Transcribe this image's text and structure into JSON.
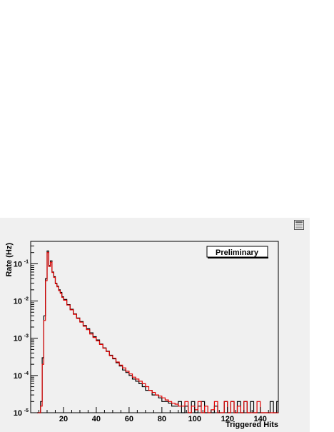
{
  "window": {
    "menu_icon": "options-menu-icon"
  },
  "chart_data": {
    "type": "line",
    "title": "",
    "xlabel": "Triggered Hits",
    "ylabel": "Rate (Hz)",
    "annotation": "Preliminary",
    "x_ticks": [
      20,
      40,
      60,
      80,
      100,
      120,
      140
    ],
    "x_tick_labels": [
      "20",
      "40",
      "60",
      "80",
      "100",
      "120",
      "140"
    ],
    "y_scale": "log",
    "y_ticks": [
      1e-05,
      0.0001,
      0.001,
      0.01,
      0.1
    ],
    "y_tick_labels": [
      {
        "base": "10",
        "exp": "-5"
      },
      {
        "base": "10",
        "exp": "-4"
      },
      {
        "base": "10",
        "exp": "-3"
      },
      {
        "base": "10",
        "exp": "-2"
      },
      {
        "base": "10",
        "exp": "-1"
      }
    ],
    "xlim": [
      0,
      151
    ],
    "ylim": [
      1e-05,
      0.4
    ],
    "grid": false,
    "background_color": "#f0f0f0",
    "series": [
      {
        "color": "#000000",
        "x": [
          4,
          5,
          6,
          7,
          8,
          9,
          10,
          11,
          12,
          13,
          14,
          15,
          16,
          17,
          18,
          19,
          20,
          22,
          24,
          26,
          28,
          30,
          32,
          34,
          36,
          38,
          40,
          42,
          44,
          46,
          48,
          50,
          52,
          54,
          56,
          58,
          60,
          62,
          64,
          66,
          68,
          70,
          72,
          74,
          76,
          78,
          80,
          82,
          84,
          86,
          88,
          90,
          92,
          94,
          96,
          98,
          100,
          102,
          104,
          106,
          108,
          110,
          112,
          114,
          116,
          118,
          120,
          122,
          124,
          126,
          128,
          130,
          132,
          134,
          136,
          138,
          140,
          142,
          144,
          146,
          148,
          150
        ],
        "y": [
          1e-05,
          1e-05,
          2e-05,
          0.0003,
          0.004,
          0.04,
          0.22,
          0.09,
          0.12,
          0.06,
          0.045,
          0.03,
          0.025,
          0.02,
          0.017,
          0.013,
          0.011,
          0.008,
          0.006,
          0.0045,
          0.0035,
          0.0028,
          0.0022,
          0.0018,
          0.0014,
          0.0011,
          0.0009,
          0.0007,
          0.00055,
          0.00045,
          0.00035,
          0.00028,
          0.00022,
          0.00018,
          0.00014,
          0.00012,
          0.0001,
          8e-05,
          7e-05,
          6e-05,
          5e-05,
          4e-05,
          4e-05,
          3e-05,
          3e-05,
          2.5e-05,
          2e-05,
          2e-05,
          1.8e-05,
          1.5e-05,
          1.5e-05,
          2e-05,
          1e-05,
          1.5e-05,
          1e-05,
          2e-05,
          1e-05,
          1.5e-05,
          2e-05,
          1e-05,
          1e-05,
          1e-05,
          1.5e-05,
          1e-05,
          1e-05,
          2e-05,
          1e-05,
          2e-05,
          1e-05,
          2e-05,
          1e-05,
          2e-05,
          1e-05,
          2e-05,
          1e-05,
          1e-05,
          1e-05,
          1e-05,
          1e-05,
          2e-05,
          1e-05,
          2e-05
        ]
      },
      {
        "color": "#e00000",
        "x": [
          4,
          5,
          6,
          7,
          8,
          9,
          10,
          11,
          12,
          13,
          14,
          15,
          16,
          17,
          18,
          19,
          20,
          22,
          24,
          26,
          28,
          30,
          32,
          34,
          36,
          38,
          40,
          42,
          44,
          46,
          48,
          50,
          52,
          54,
          56,
          58,
          60,
          62,
          64,
          66,
          68,
          70,
          72,
          74,
          76,
          78,
          80,
          82,
          84,
          86,
          88,
          90,
          92,
          94,
          96,
          98,
          100,
          102,
          104,
          106,
          108,
          110,
          112,
          114,
          116,
          118,
          120,
          122,
          124,
          126,
          128,
          130,
          132,
          134,
          136,
          138,
          140,
          142,
          144,
          146,
          148,
          150
        ],
        "y": [
          1e-05,
          1e-05,
          1.5e-05,
          0.0002,
          0.003,
          0.035,
          0.2,
          0.085,
          0.11,
          0.058,
          0.043,
          0.029,
          0.024,
          0.019,
          0.016,
          0.0125,
          0.0105,
          0.0078,
          0.0058,
          0.0044,
          0.0034,
          0.0027,
          0.0021,
          0.0017,
          0.0013,
          0.00105,
          0.00085,
          0.00068,
          0.00054,
          0.00044,
          0.00034,
          0.00029,
          0.00023,
          0.00019,
          0.00016,
          0.00013,
          0.00011,
          9e-05,
          8e-05,
          7e-05,
          6e-05,
          5e-05,
          4e-05,
          3.5e-05,
          3e-05,
          2.8e-05,
          2.5e-05,
          2.2e-05,
          2e-05,
          1.8e-05,
          1.7e-05,
          1.5e-05,
          1.5e-05,
          2e-05,
          1e-05,
          1.5e-05,
          1.2e-05,
          2e-05,
          1e-05,
          1.5e-05,
          1e-05,
          1.2e-05,
          2e-05,
          1e-05,
          1e-05,
          2e-05,
          1e-05,
          2e-05,
          1e-05,
          1.5e-05,
          1e-05,
          2e-05,
          1e-05,
          1e-05,
          1e-05,
          2e-05,
          1e-05,
          1e-05,
          1e-05,
          1e-05,
          1e-05,
          1e-05
        ]
      }
    ]
  }
}
